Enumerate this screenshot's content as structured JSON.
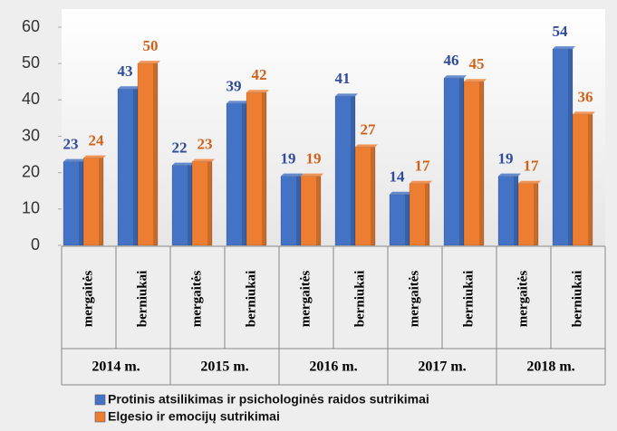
{
  "chart_data": {
    "type": "bar",
    "categories": [
      "mergaitės",
      "berniukai",
      "mergaitės",
      "berniukai",
      "mergaitės",
      "berniukai",
      "mergaitės",
      "berniukai",
      "mergaitės",
      "berniukai"
    ],
    "groups": [
      "2014 m.",
      "2015 m.",
      "2016 m.",
      "2017 m.",
      "2018 m."
    ],
    "series": [
      {
        "name": "Protinis atsilikimas ir psichologinės raidos sutrikimai",
        "color": "#4472c4",
        "label_color": "#2f4b9a",
        "values": [
          23,
          43,
          22,
          39,
          19,
          41,
          14,
          46,
          19,
          54
        ]
      },
      {
        "name": "Elgesio ir emocijų sutrikimai",
        "color": "#ed7d31",
        "label_color": "#d0621a",
        "values": [
          24,
          50,
          23,
          42,
          19,
          27,
          17,
          45,
          17,
          36
        ]
      }
    ],
    "ylim": [
      0,
      60
    ],
    "yticks": [
      0,
      10,
      20,
      30,
      40,
      50,
      60
    ],
    "grid": false
  }
}
